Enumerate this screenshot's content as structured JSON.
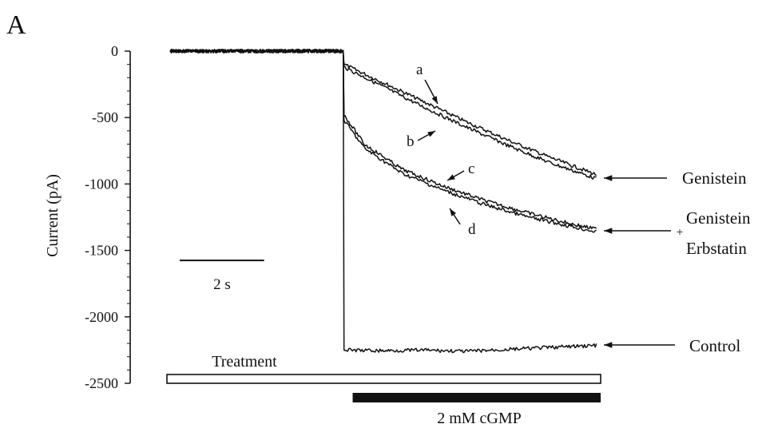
{
  "panel_label": "A",
  "chart_data": {
    "type": "line",
    "xlabel": "",
    "ylabel": "Current (pA)",
    "ylim": [
      -2500,
      0
    ],
    "yticks": [
      0,
      -500,
      -1000,
      -1500,
      -2000,
      -2500
    ],
    "y_tick_labels": [
      "0",
      "-500",
      "-1000",
      "-1500",
      "-2000",
      "-2500"
    ],
    "x_range_s": [
      0,
      10.2
    ],
    "grid": false,
    "scale_bar": {
      "label": "2 s",
      "duration_s": 2,
      "level_pA": -1575
    },
    "series": [
      {
        "id": "a",
        "x": [
          0,
          4.1,
          4.12,
          5,
          6,
          7,
          8,
          9,
          10.1
        ],
        "y": [
          0,
          0,
          -100,
          -230,
          -380,
          -530,
          -670,
          -800,
          -930
        ]
      },
      {
        "id": "b",
        "x": [
          0,
          4.1,
          4.12,
          5,
          6,
          7,
          8,
          9,
          10.1
        ],
        "y": [
          0,
          0,
          -120,
          -260,
          -420,
          -570,
          -710,
          -840,
          -960
        ]
      },
      {
        "id": "c",
        "x": [
          0,
          4.1,
          4.12,
          4.6,
          5.5,
          6.5,
          7.5,
          8.5,
          9.5,
          10.1
        ],
        "y": [
          0,
          0,
          -480,
          -700,
          -890,
          -1020,
          -1130,
          -1220,
          -1300,
          -1340
        ]
      },
      {
        "id": "d",
        "x": [
          0,
          4.1,
          4.12,
          4.6,
          5.5,
          6.5,
          7.5,
          8.5,
          9.5,
          10.1
        ],
        "y": [
          0,
          0,
          -520,
          -730,
          -920,
          -1050,
          -1160,
          -1250,
          -1320,
          -1360
        ]
      },
      {
        "id": "control",
        "x": [
          0,
          4.1,
          4.12,
          5,
          6,
          7,
          8,
          9,
          10.1
        ],
        "y": [
          0,
          0,
          -2250,
          -2255,
          -2250,
          -2260,
          -2245,
          -2230,
          -2215
        ]
      }
    ],
    "trace_letters": [
      {
        "text": "a",
        "series": "a"
      },
      {
        "text": "b",
        "series": "b"
      },
      {
        "text": "c",
        "series": "c"
      },
      {
        "text": "d",
        "series": "d"
      }
    ],
    "right_labels": [
      {
        "id": "genistein",
        "lines": [
          "Genistein"
        ]
      },
      {
        "id": "genistein-erbstatin",
        "lines": [
          "Genistein",
          "+",
          "Erbstatin"
        ]
      },
      {
        "id": "control",
        "lines": [
          "Control"
        ]
      }
    ],
    "bars": [
      {
        "id": "treatment",
        "label": "Treatment",
        "x_start_s": 0,
        "x_end_s": 10.2,
        "fill": "#ffffff"
      },
      {
        "id": "cgmp",
        "label": "2 mM cGMP",
        "x_start_s": 4.4,
        "x_end_s": 10.2,
        "fill": "#111111"
      }
    ]
  }
}
